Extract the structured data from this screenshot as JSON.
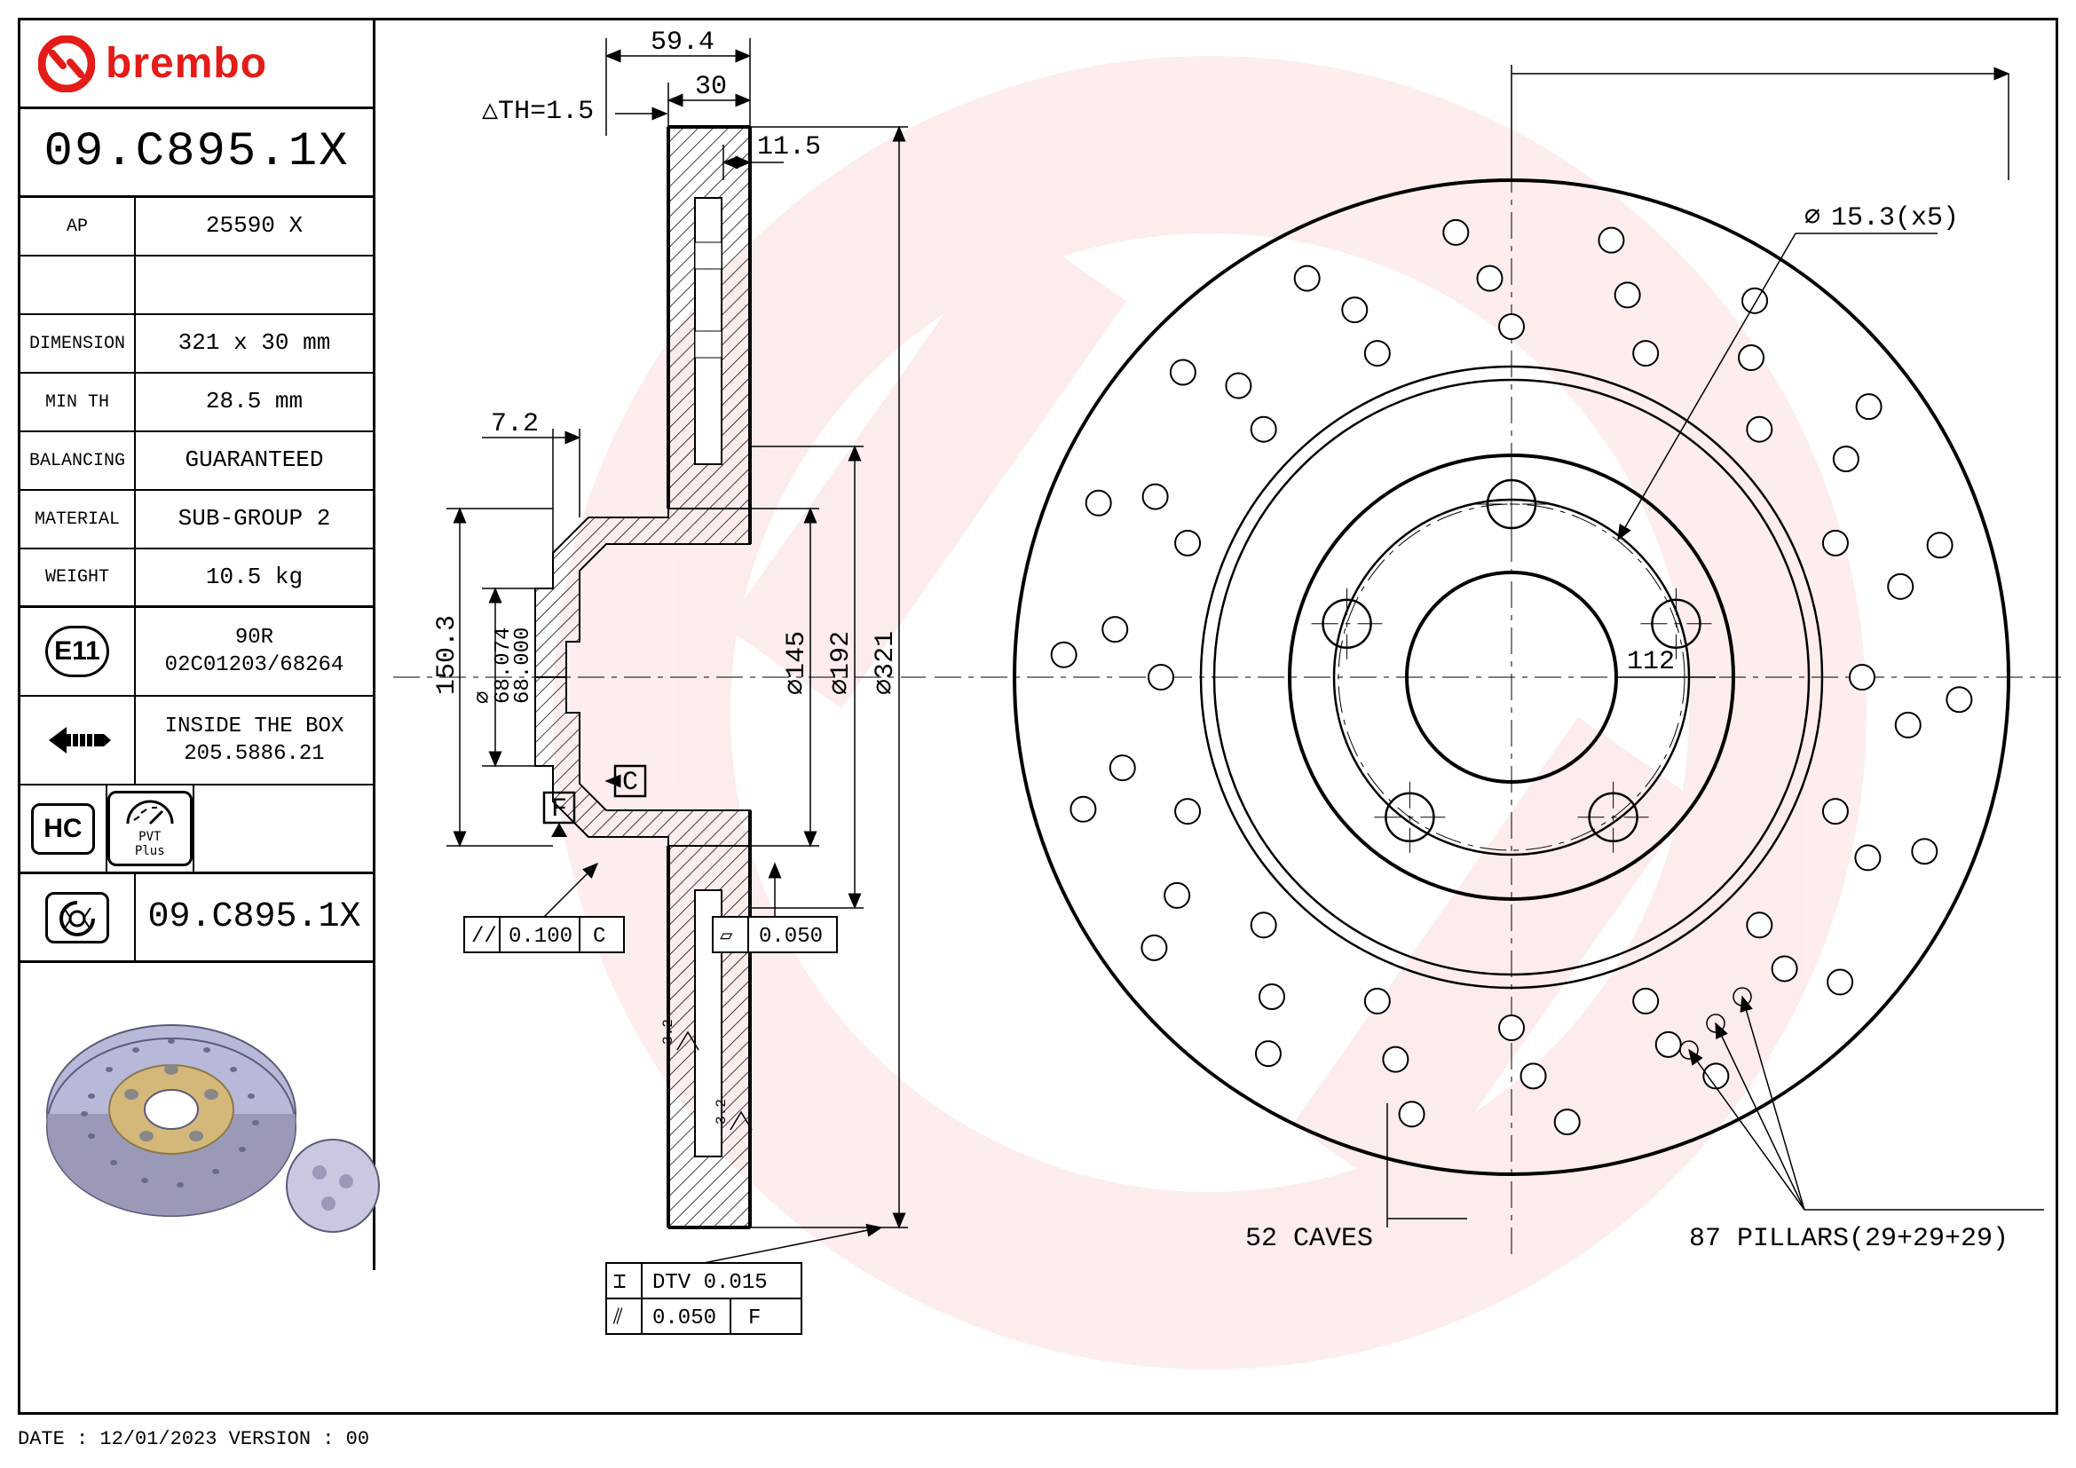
{
  "brand": "brembo",
  "brand_color": "#e41b17",
  "part_number": "09.C895.1X",
  "spec_rows": [
    {
      "k": "AP",
      "v": "25590 X"
    },
    {
      "k": "",
      "v": ""
    },
    {
      "k": "DIMENSION",
      "v": "321 x 30 mm"
    },
    {
      "k": "MIN TH",
      "v": "28.5 mm"
    },
    {
      "k": "BALANCING",
      "v": "GUARANTEED"
    },
    {
      "k": "MATERIAL",
      "v": "SUB-GROUP 2"
    },
    {
      "k": "WEIGHT",
      "v": "10.5 kg"
    }
  ],
  "cert": {
    "mark": "E11",
    "value": "90R\n02C01203/68264"
  },
  "box": {
    "icon": "screw",
    "value": "INSIDE THE BOX\n205.5886.21"
  },
  "badges": {
    "hc": "HC",
    "pvt": "PVT Plus"
  },
  "xtra_part": "09.C895.1X",
  "footer": "DATE : 12/01/2023 VERSION : 00",
  "section_view": {
    "dims": {
      "top_width": "59.4",
      "thickness": "30",
      "th_delta": "△TH=1.5",
      "lip": "11.5",
      "step": "7.2",
      "height": "150.3",
      "bore_upper": "68.074",
      "bore_lower": "68.000",
      "datum_f": "F",
      "datum_c": "C",
      "par_tol": "0.100",
      "par_ref": "C",
      "flat_tol": "0.050",
      "dtv": "DTV 0.015",
      "runout": "0.050",
      "runout_ref": "F",
      "ra1": "3.2",
      "ra2": "3.2"
    },
    "diameters": {
      "d1": "⌀145",
      "d2": "⌀192",
      "d3": "⌀321"
    }
  },
  "front_view": {
    "outer_dia": 321,
    "hub_dia": 192,
    "inner_dia": 145,
    "bore_dia": 68,
    "bolt_circle": 112,
    "bolt_hole": "15.3(x5)",
    "bolt_label": "112",
    "num_drill_holes": 52,
    "caves_label": "52 CAVES",
    "pillars_label": "87 PILLARS(29+29+29)",
    "colors": {
      "outline": "#000000",
      "fill": "#ffffff",
      "background": "#ffffff"
    }
  },
  "render": {
    "disc_fill": "#b8b8d8",
    "disc_edge": "#7a7a9a",
    "hub_fill": "#d4b87a"
  }
}
